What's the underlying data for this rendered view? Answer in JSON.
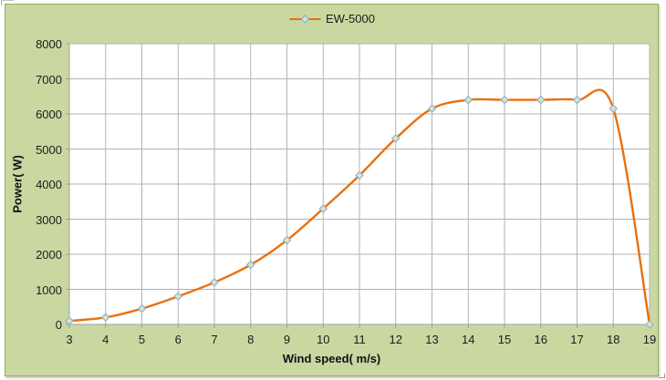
{
  "chart": {
    "colors": {
      "page_background": "#ffffff",
      "chart_background": "#c9d8a1",
      "chart_border": "#95af55",
      "plot_background": "#ffffff",
      "gridline": "#b3b3b3",
      "axis_line": "#9f9f9f",
      "tick_mark": "#9f9f9f",
      "series_line": "#e8710d",
      "marker_fill": "#dbe5bf",
      "marker_border": "#8fb3d6",
      "text": "#1c1c1c"
    },
    "legend": {
      "label": "EW-5000"
    }
  },
  "chart_data": {
    "type": "line",
    "smoothed": true,
    "marker_shape": "diamond",
    "title": "",
    "xlabel": "Wind speed( m/s)",
    "ylabel": "Power( W)",
    "legend_entries": [
      "EW-5000"
    ],
    "legend_position": "top-center",
    "grid": true,
    "x": [
      3,
      4,
      5,
      6,
      7,
      8,
      9,
      10,
      11,
      12,
      13,
      14,
      15,
      16,
      17,
      18,
      19
    ],
    "series": [
      {
        "name": "EW-5000",
        "values": [
          100,
          200,
          450,
          800,
          1200,
          1700,
          2400,
          3300,
          4250,
          5300,
          6150,
          6400,
          6400,
          6400,
          6400,
          6150,
          0
        ]
      }
    ],
    "xlim": [
      3,
      19
    ],
    "ylim": [
      0,
      8000
    ],
    "x_ticks": [
      3,
      4,
      5,
      6,
      7,
      8,
      9,
      10,
      11,
      12,
      13,
      14,
      15,
      16,
      17,
      18,
      19
    ],
    "y_ticks": [
      0,
      1000,
      2000,
      3000,
      4000,
      5000,
      6000,
      7000,
      8000
    ]
  }
}
